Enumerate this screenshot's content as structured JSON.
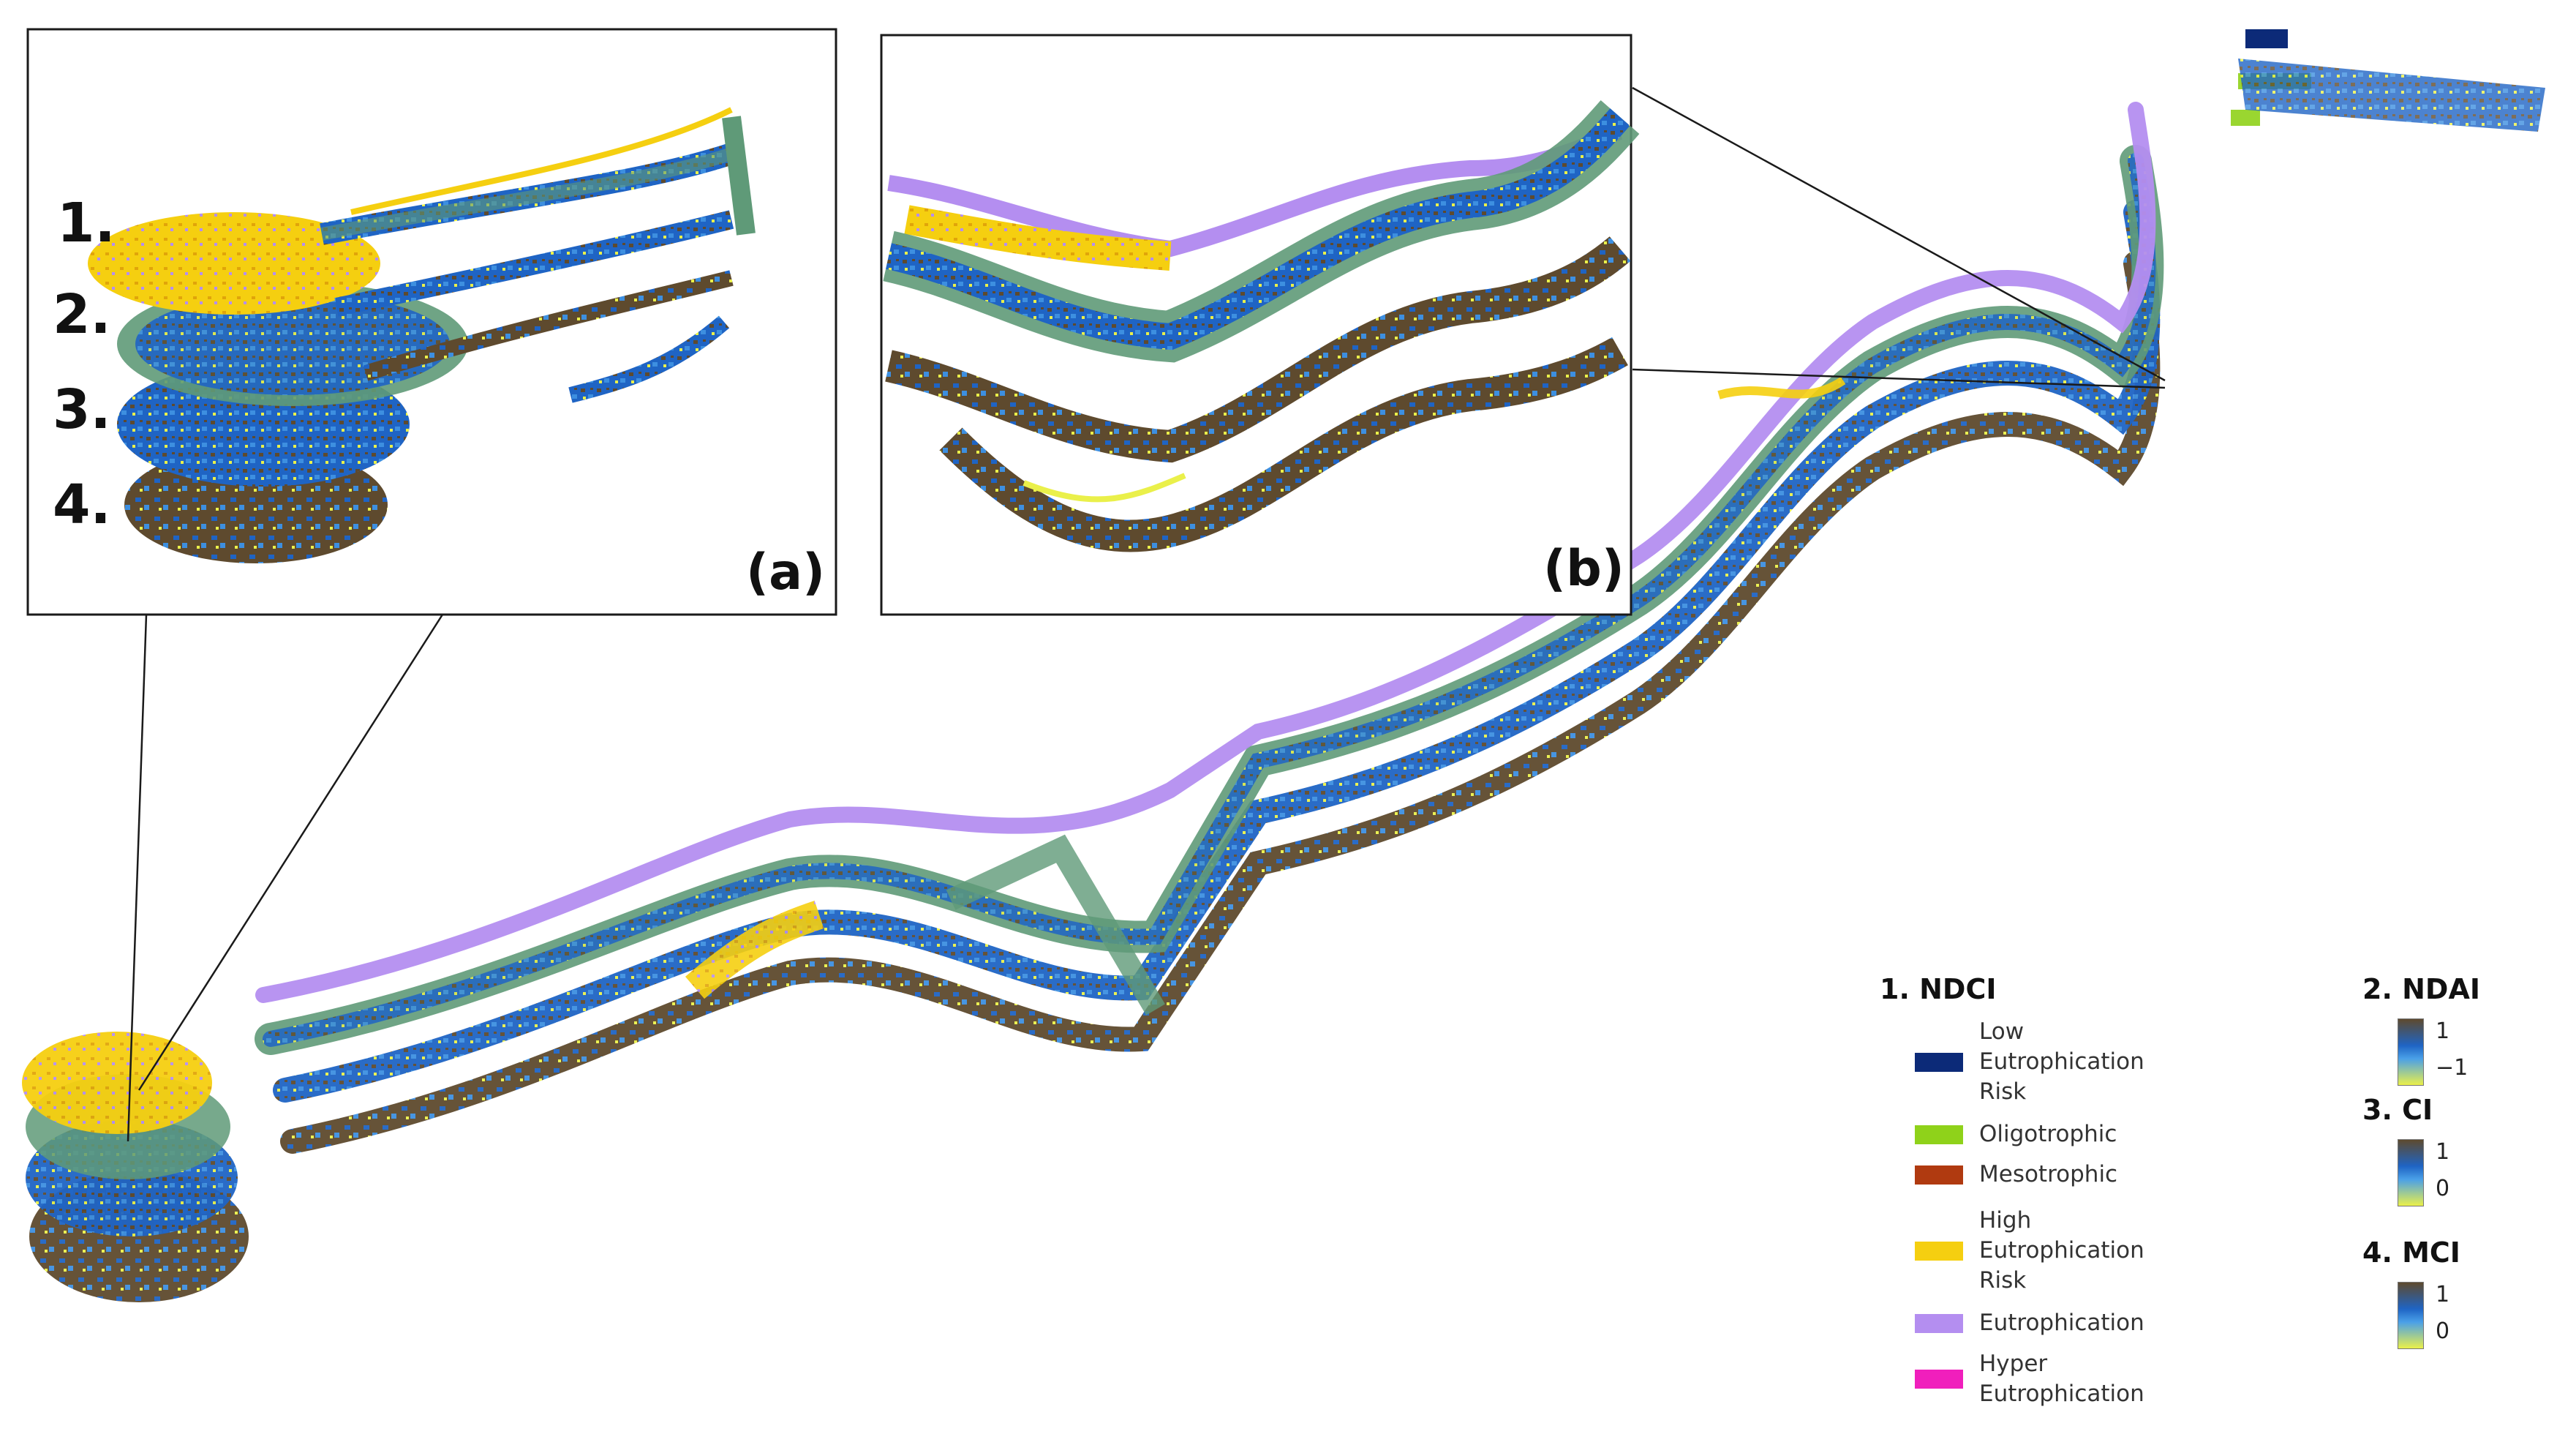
{
  "insets": {
    "a_label": "(a)",
    "b_label": "(b)",
    "layer_numbers": [
      "1.",
      "2.",
      "3.",
      "4."
    ]
  },
  "legend": {
    "ndci": {
      "title": "1. NDCI",
      "classes": [
        {
          "label": "Low Eutrophication Risk",
          "lines": [
            "Low",
            "Eutrophication",
            "Risk"
          ],
          "color": "#0c2a78"
        },
        {
          "label": "Oligotrophic",
          "lines": [
            "Oligotrophic"
          ],
          "color": "#8fd21a"
        },
        {
          "label": "Mesotrophic",
          "lines": [
            "Mesotrophic"
          ],
          "color": "#b03a10"
        },
        {
          "label": "High Eutrophication Risk",
          "lines": [
            "High",
            "Eutrophication",
            "Risk"
          ],
          "color": "#f5cf10"
        },
        {
          "label": "Eutrophication",
          "lines": [
            "Eutrophication"
          ],
          "color": "#b48ef0"
        },
        {
          "label": "Hyper Eutrophication",
          "lines": [
            "Hyper",
            "Eutrophication"
          ],
          "color": "#f01fbc"
        }
      ]
    },
    "ndai": {
      "title": "2. NDAI",
      "max": "1",
      "min": "−1"
    },
    "ci": {
      "title": "3. CI",
      "max": "1",
      "min": "0"
    },
    "mci": {
      "title": "4. MCI",
      "max": "1",
      "min": "0"
    }
  },
  "colors": {
    "ramp_high": "#5e4a2e",
    "ramp_mid": "#1f64c4",
    "ramp_low": "#eaf04a",
    "overlay_green": "#5f9a78",
    "frame": "#1a1a1a"
  }
}
